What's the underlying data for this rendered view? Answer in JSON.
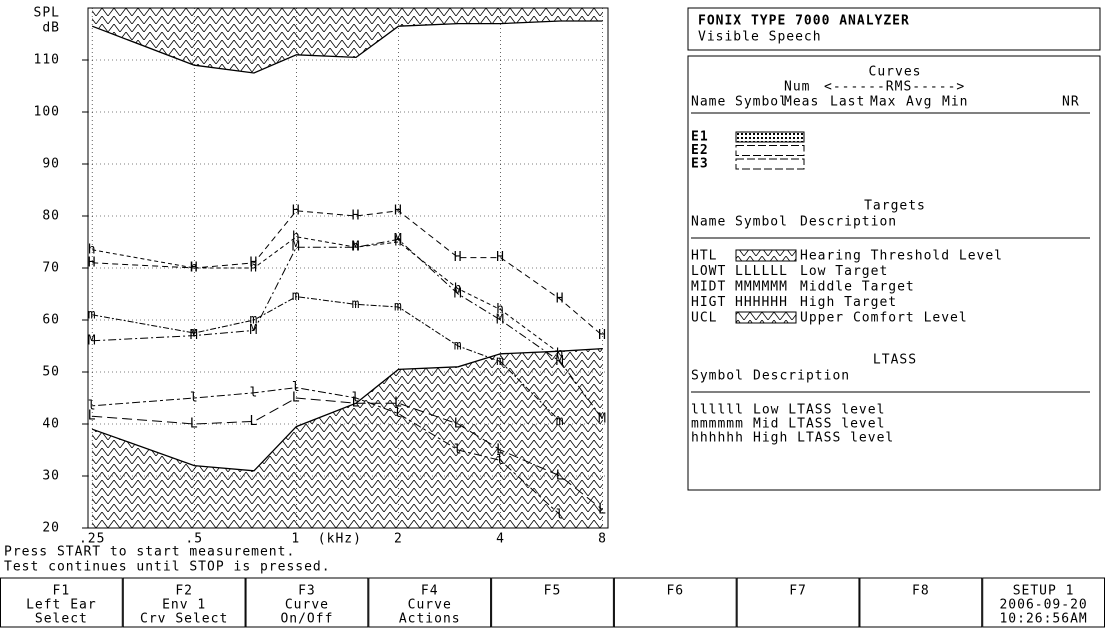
{
  "chart_data": {
    "type": "line",
    "ylabel_lines": [
      "SPL",
      "dB"
    ],
    "x": [
      0.25,
      0.5,
      0.75,
      1,
      1.5,
      2,
      3,
      4,
      6,
      8
    ],
    "log_x": true,
    "grid": true,
    "xlim": [
      0.243,
      8.3
    ],
    "xticks": [
      {
        "value": 0.25,
        "label": ".25"
      },
      {
        "value": 0.5,
        "label": ".5"
      },
      {
        "value": 1,
        "label": "1  (kHz)"
      },
      2,
      4,
      8
    ],
    "ylim": [
      20,
      120
    ],
    "yticks": [
      20,
      30,
      40,
      50,
      60,
      70,
      80,
      90,
      100,
      110
    ],
    "series": [
      {
        "name": "HTL",
        "description": "Hearing Threshold Level",
        "color": "#000000",
        "dash": "none",
        "hatch": "below",
        "values": [
          39,
          32,
          31,
          39.5,
          44,
          50.5,
          51,
          53.5,
          54,
          54.5
        ]
      },
      {
        "name": "LOWT",
        "description": "Low Target",
        "pattern": "LLLLLL",
        "marker": "L",
        "color": "#000000",
        "dash": "10 5",
        "values": [
          41.5,
          40,
          40.5,
          45,
          44,
          44,
          40,
          35,
          30,
          23.5
        ]
      },
      {
        "name": "MIDT",
        "description": "Middle Target",
        "pattern": "MMMMMM",
        "marker": "M",
        "color": "#000000",
        "dash": "8 3 2 3",
        "values": [
          56,
          57,
          58,
          74,
          74,
          75.5,
          65,
          60,
          52,
          41
        ]
      },
      {
        "name": "HIGT",
        "description": "High Target",
        "pattern": "HHHHHH",
        "marker": "H",
        "color": "#000000",
        "dash": "6 4",
        "values": [
          71,
          70,
          71,
          81,
          80,
          81,
          72,
          72,
          64,
          57
        ]
      },
      {
        "name": "UCL",
        "description": "Upper Comfort Level",
        "color": "#000000",
        "dash": "none",
        "hatch": "above",
        "values": [
          116.5,
          109,
          107.5,
          111,
          110.5,
          116.5,
          117,
          117,
          117.5,
          117.5
        ]
      },
      {
        "description": "Low LTASS level",
        "pattern": "llllll",
        "marker": "l",
        "color": "#000000",
        "dash": "3 3 8 3",
        "values": [
          43.5,
          45,
          46,
          47,
          45,
          42,
          35,
          33,
          22.5,
          null
        ]
      },
      {
        "description": "Mid LTASS level",
        "pattern": "mmmmmm",
        "marker": "m",
        "color": "#000000",
        "dash": "6 2 2 2",
        "values": [
          61,
          57.5,
          60,
          64.5,
          63,
          62.5,
          55,
          52,
          40.5,
          null
        ]
      },
      {
        "description": "High LTASS level",
        "pattern": "hhhhhh",
        "marker": "h",
        "color": "#000000",
        "dash": "4 3",
        "values": [
          73.5,
          70,
          70,
          76,
          74,
          75,
          66,
          62,
          53.5,
          null
        ]
      }
    ]
  },
  "panel": {
    "header": {
      "title": "FONIX TYPE 7000 ANALYZER",
      "subtitle": "Visible Speech"
    },
    "curves": {
      "title": "Curves",
      "num_label": "Num",
      "rms_label": "<------RMS----->",
      "columns": [
        "Name",
        "Symbol",
        "Meas",
        "Last",
        "Max",
        "Avg",
        "Min",
        "NR"
      ],
      "rows": [
        "E1",
        "E2",
        "E3"
      ]
    },
    "targets": {
      "title": "Targets",
      "columns": [
        "Name",
        "Symbol",
        "Description"
      ]
    },
    "ltass": {
      "title": "LTASS",
      "columns": [
        "Symbol",
        "Description"
      ]
    }
  },
  "status": [
    "Press START to start measurement.",
    "Test continues until STOP is pressed."
  ],
  "fkeys": [
    {
      "key": "F1",
      "lines": [
        "Left Ear",
        "Select"
      ]
    },
    {
      "key": "F2",
      "lines": [
        "Env 1",
        "Crv Select"
      ]
    },
    {
      "key": "F3",
      "lines": [
        "Curve",
        "On/Off"
      ]
    },
    {
      "key": "F4",
      "lines": [
        "Curve",
        "Actions"
      ]
    },
    {
      "key": "F5",
      "lines": []
    },
    {
      "key": "F6",
      "lines": []
    },
    {
      "key": "F7",
      "lines": []
    },
    {
      "key": "F8",
      "lines": []
    },
    {
      "key": "SETUP 1",
      "lines": [
        "2006-09-20",
        "10:26:56AM"
      ]
    }
  ]
}
